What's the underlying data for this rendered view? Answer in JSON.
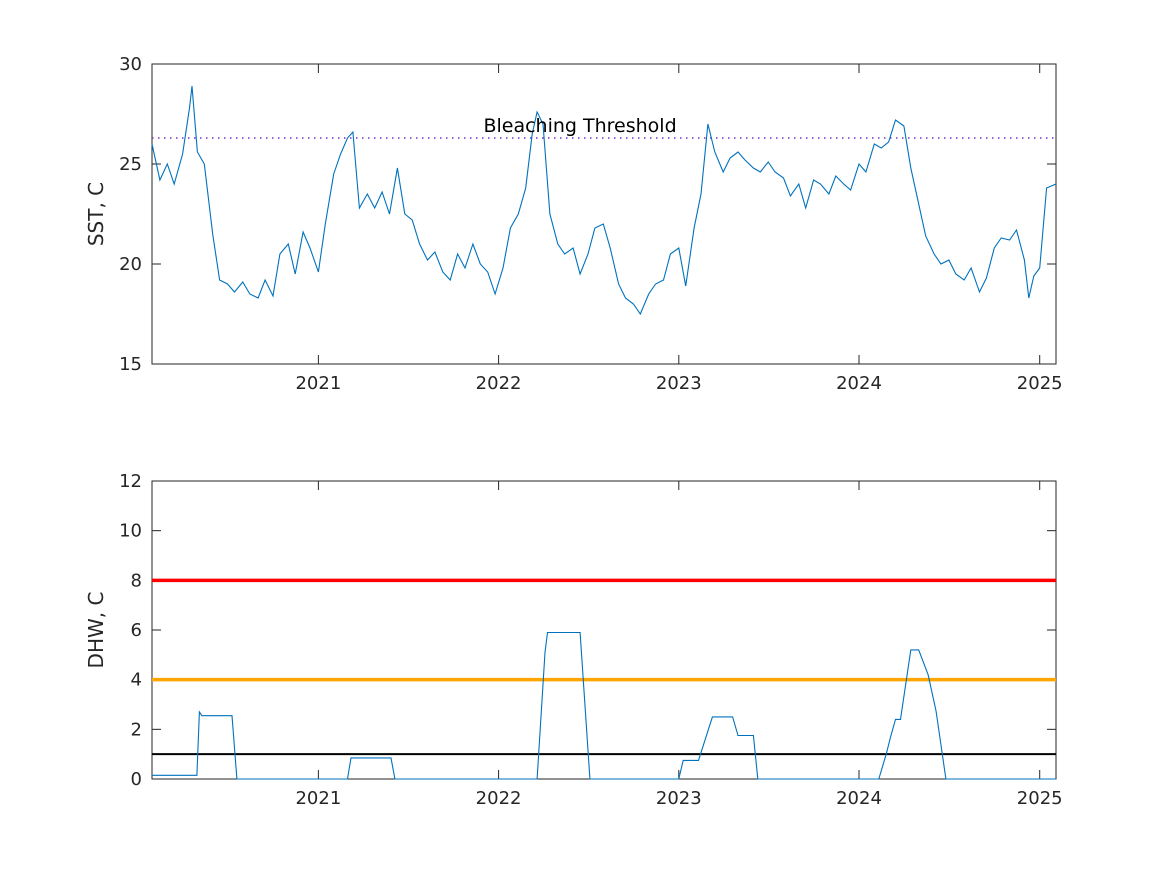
{
  "chart_data": [
    {
      "type": "line",
      "ylabel": "SST, C",
      "xlabel": "",
      "xlim": [
        "2020-01-30",
        "2025-02-03"
      ],
      "ylim": [
        15,
        30
      ],
      "x_ticks": [
        "2021",
        "2022",
        "2023",
        "2024",
        "2025"
      ],
      "y_ticks": [
        "15",
        "20",
        "25",
        "30"
      ],
      "grid": false,
      "colors": {
        "series": "#0072BD",
        "threshold": "#7E2FBE",
        "axes": "#262626"
      },
      "threshold": {
        "label": "Bleaching Threshold",
        "value": 26.3
      },
      "series": [
        {
          "x": [
            "2020-01-30",
            "2020-02-15",
            "2020-03-01",
            "2020-03-15",
            "2020-04-01",
            "2020-04-15",
            "2020-04-20",
            "2020-05-01",
            "2020-05-15",
            "2020-06-01",
            "2020-06-15",
            "2020-07-01",
            "2020-07-15",
            "2020-08-01",
            "2020-08-15",
            "2020-09-01",
            "2020-09-15",
            "2020-10-01",
            "2020-10-15",
            "2020-11-01",
            "2020-11-15",
            "2020-12-01",
            "2020-12-15",
            "2021-01-01",
            "2021-01-15",
            "2021-02-01",
            "2021-02-15",
            "2021-03-01",
            "2021-03-12",
            "2021-03-25",
            "2021-04-10",
            "2021-04-25",
            "2021-05-10",
            "2021-05-25",
            "2021-06-10",
            "2021-06-25",
            "2021-07-10",
            "2021-07-25",
            "2021-08-10",
            "2021-08-25",
            "2021-09-10",
            "2021-09-25",
            "2021-10-10",
            "2021-10-25",
            "2021-11-10",
            "2021-11-25",
            "2021-12-10",
            "2021-12-25",
            "2022-01-10",
            "2022-01-25",
            "2022-02-10",
            "2022-02-25",
            "2022-03-10",
            "2022-03-20",
            "2022-04-01",
            "2022-04-15",
            "2022-05-01",
            "2022-05-15",
            "2022-06-01",
            "2022-06-15",
            "2022-07-01",
            "2022-07-15",
            "2022-08-01",
            "2022-08-15",
            "2022-09-01",
            "2022-09-15",
            "2022-10-01",
            "2022-10-15",
            "2022-11-01",
            "2022-11-15",
            "2022-12-01",
            "2022-12-15",
            "2023-01-01",
            "2023-01-15",
            "2023-02-01",
            "2023-02-15",
            "2023-03-01",
            "2023-03-15",
            "2023-04-01",
            "2023-04-15",
            "2023-05-01",
            "2023-05-15",
            "2023-06-01",
            "2023-06-15",
            "2023-07-01",
            "2023-07-15",
            "2023-08-01",
            "2023-08-15",
            "2023-09-01",
            "2023-09-15",
            "2023-10-01",
            "2023-10-15",
            "2023-11-01",
            "2023-11-15",
            "2023-12-01",
            "2023-12-15",
            "2024-01-01",
            "2024-01-15",
            "2024-02-01",
            "2024-02-15",
            "2024-03-01",
            "2024-03-15",
            "2024-04-01",
            "2024-04-15",
            "2024-05-01",
            "2024-05-15",
            "2024-06-01",
            "2024-06-15",
            "2024-07-01",
            "2024-07-15",
            "2024-08-01",
            "2024-08-15",
            "2024-09-01",
            "2024-09-15",
            "2024-10-01",
            "2024-10-15",
            "2024-11-01",
            "2024-11-15",
            "2024-12-01",
            "2024-12-10",
            "2024-12-20",
            "2025-01-01",
            "2025-01-15",
            "2025-02-03"
          ],
          "y": [
            26.0,
            24.2,
            25.0,
            24.0,
            25.5,
            27.8,
            28.9,
            25.6,
            25.0,
            21.5,
            19.2,
            19.0,
            18.6,
            19.1,
            18.5,
            18.3,
            19.2,
            18.4,
            20.5,
            21.0,
            19.5,
            21.6,
            20.8,
            19.6,
            22.0,
            24.5,
            25.5,
            26.3,
            26.6,
            22.8,
            23.5,
            22.8,
            23.6,
            22.5,
            24.8,
            22.5,
            22.2,
            21.0,
            20.2,
            20.6,
            19.6,
            19.2,
            20.5,
            19.8,
            21.0,
            20.0,
            19.6,
            18.5,
            19.8,
            21.8,
            22.5,
            23.8,
            26.5,
            27.6,
            27.0,
            22.5,
            21.0,
            20.5,
            20.8,
            19.5,
            20.5,
            21.8,
            22.0,
            20.8,
            19.0,
            18.3,
            18.0,
            17.5,
            18.5,
            19.0,
            19.2,
            20.5,
            20.8,
            18.9,
            21.8,
            23.5,
            27.0,
            25.6,
            24.6,
            25.3,
            25.6,
            25.2,
            24.8,
            24.6,
            25.1,
            24.6,
            24.3,
            23.4,
            24.0,
            22.8,
            24.2,
            24.0,
            23.5,
            24.4,
            24.0,
            23.7,
            25.0,
            24.6,
            26.0,
            25.8,
            26.1,
            27.2,
            26.9,
            24.8,
            23.0,
            21.4,
            20.5,
            20.0,
            20.2,
            19.5,
            19.2,
            19.8,
            18.6,
            19.3,
            20.8,
            21.3,
            21.2,
            21.7,
            20.2,
            18.3,
            19.4,
            19.8,
            23.8,
            24.0
          ]
        }
      ]
    },
    {
      "type": "line",
      "ylabel": "DHW, C",
      "xlabel": "",
      "xlim": [
        "2020-01-30",
        "2025-02-03"
      ],
      "ylim": [
        0,
        12
      ],
      "x_ticks": [
        "2021",
        "2022",
        "2023",
        "2024",
        "2025"
      ],
      "y_ticks": [
        "0",
        "2",
        "4",
        "6",
        "8",
        "10",
        "12"
      ],
      "grid": false,
      "colors": {
        "series": "#0072BD",
        "level_red": "#FF0000",
        "level_orange": "#FFA500",
        "level_black": "#000000",
        "axes": "#262626"
      },
      "reference_lines": [
        {
          "value": 8,
          "color": "#FF0000"
        },
        {
          "value": 4,
          "color": "#FFA500"
        },
        {
          "value": 1,
          "color": "#000000"
        }
      ],
      "series": [
        {
          "x": [
            "2020-01-30",
            "2020-04-30",
            "2020-05-05",
            "2020-05-10",
            "2020-07-10",
            "2020-07-20",
            "2021-03-01",
            "2021-03-08",
            "2021-05-28",
            "2021-06-05",
            "2022-03-20",
            "2022-04-05",
            "2022-04-10",
            "2022-06-15",
            "2022-07-05",
            "2023-01-01",
            "2023-01-10",
            "2023-02-10",
            "2023-03-10",
            "2023-04-20",
            "2023-05-01",
            "2023-06-01",
            "2023-06-10",
            "2024-02-10",
            "2024-02-25",
            "2024-03-05",
            "2024-03-15",
            "2024-03-25",
            "2024-04-15",
            "2024-05-01",
            "2024-05-20",
            "2024-06-05",
            "2024-06-25",
            "2025-02-03"
          ],
          "y": [
            0.15,
            0.15,
            2.7,
            2.55,
            2.55,
            0.0,
            0.0,
            0.85,
            0.85,
            0.0,
            0.0,
            5.1,
            5.9,
            5.9,
            0.0,
            0.0,
            0.75,
            0.75,
            2.5,
            2.5,
            1.75,
            1.75,
            0.0,
            0.0,
            1.0,
            1.7,
            2.4,
            2.4,
            5.2,
            5.2,
            4.2,
            2.75,
            0.0,
            0.0
          ]
        }
      ]
    }
  ]
}
